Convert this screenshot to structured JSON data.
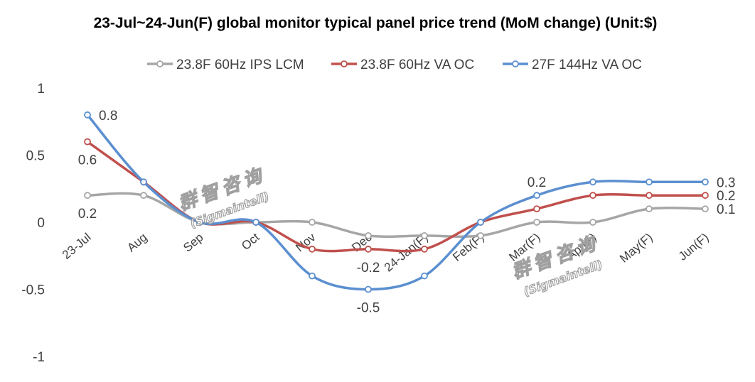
{
  "chart_data": {
    "type": "line",
    "title": "23-Jul~24-Jun(F) global monitor typical panel price trend (MoM change) (Unit:$)",
    "categories": [
      "23-Jul",
      "Aug",
      "Sep",
      "Oct",
      "Nov",
      "Dec",
      "24-Jan(F)",
      "Feb(F)",
      "Mar(F)",
      "Apr(F)",
      "May(F)",
      "Jun(F)"
    ],
    "series": [
      {
        "name": "23.8F 60Hz IPS LCM",
        "color": "#a6a6a6",
        "values": [
          0.2,
          0.2,
          0,
          0,
          0,
          -0.1,
          -0.1,
          -0.1,
          0,
          0,
          0.1,
          0.1
        ],
        "labels": [
          {
            "index": 0,
            "text": "0.2",
            "pos": "below"
          },
          {
            "index": 11,
            "text": "0.1",
            "pos": "right"
          }
        ]
      },
      {
        "name": "23.8F 60Hz VA OC",
        "color": "#c0504d",
        "values": [
          0.6,
          0.3,
          0,
          0,
          -0.2,
          -0.2,
          -0.2,
          0,
          0.1,
          0.2,
          0.2,
          0.2
        ],
        "labels": [
          {
            "index": 0,
            "text": "0.6",
            "pos": "below"
          },
          {
            "index": 5,
            "text": "-0.2",
            "pos": "below"
          },
          {
            "index": 11,
            "text": "0.2",
            "pos": "right"
          }
        ]
      },
      {
        "name": "27F 144Hz VA OC",
        "color": "#5b8fd0",
        "values": [
          0.8,
          0.3,
          0,
          0,
          -0.4,
          -0.5,
          -0.4,
          0,
          0.2,
          0.3,
          0.3,
          0.3
        ],
        "labels": [
          {
            "index": 0,
            "text": "0.8",
            "pos": "right"
          },
          {
            "index": 5,
            "text": "-0.5",
            "pos": "below"
          },
          {
            "index": 8,
            "text": "0.2",
            "pos": "above"
          },
          {
            "index": 11,
            "text": "0.3",
            "pos": "right"
          }
        ]
      }
    ],
    "yticks": [
      "1",
      "0.5",
      "0",
      "-0.5",
      "-1"
    ],
    "ylim": [
      -1,
      1
    ],
    "grid": false,
    "legend": "top"
  },
  "watermark": {
    "cn": "群智咨询",
    "en": "(Sigmaintell)"
  }
}
